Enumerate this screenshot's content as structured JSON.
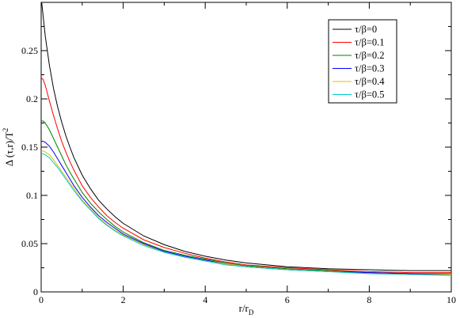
{
  "chart_data": {
    "type": "line",
    "title": "",
    "xlabel": {
      "main": "r/r",
      "sub": "D"
    },
    "ylabel": {
      "main": "Δ (τ,r)/T",
      "sup": "2"
    },
    "xlim": [
      0,
      10
    ],
    "ylim": [
      0,
      0.3
    ],
    "xticks": [
      0,
      2,
      4,
      6,
      8,
      10
    ],
    "xtick_labels": [
      "0",
      "2",
      "4",
      "6",
      "8",
      "10"
    ],
    "yticks": [
      0,
      0.05,
      0.1,
      0.15,
      0.2,
      0.25
    ],
    "ytick_labels": [
      "0",
      "0.05",
      "0.1",
      "0.15",
      "0.2",
      "0.25"
    ],
    "grid": false,
    "legend_position": "top-right",
    "x": [
      0,
      0.05,
      0.1,
      0.2,
      0.3,
      0.4,
      0.5,
      0.6,
      0.7,
      0.8,
      1.0,
      1.2,
      1.4,
      1.6,
      1.8,
      2.0,
      2.5,
      3.0,
      3.5,
      4.0,
      4.5,
      5.0,
      6.0,
      7.0,
      8.0,
      9.0,
      10.0
    ],
    "series": [
      {
        "name": "τ/β=0",
        "color": "#000000",
        "values": [
          0.305,
          0.285,
          0.265,
          0.235,
          0.211,
          0.192,
          0.176,
          0.162,
          0.15,
          0.139,
          0.121,
          0.107,
          0.095,
          0.086,
          0.078,
          0.071,
          0.058,
          0.049,
          0.042,
          0.037,
          0.033,
          0.03,
          0.026,
          0.024,
          0.023,
          0.022,
          0.022
        ]
      },
      {
        "name": "τ/β=0.1",
        "color": "#ff0000",
        "values": [
          0.222,
          0.22,
          0.214,
          0.198,
          0.183,
          0.169,
          0.156,
          0.145,
          0.135,
          0.126,
          0.11,
          0.098,
          0.088,
          0.079,
          0.072,
          0.066,
          0.054,
          0.046,
          0.04,
          0.035,
          0.031,
          0.028,
          0.025,
          0.023,
          0.021,
          0.02,
          0.02
        ]
      },
      {
        "name": "τ/β=0.2",
        "color": "#008000",
        "values": [
          0.177,
          0.177,
          0.175,
          0.168,
          0.159,
          0.15,
          0.141,
          0.132,
          0.124,
          0.117,
          0.103,
          0.092,
          0.083,
          0.075,
          0.068,
          0.062,
          0.051,
          0.043,
          0.038,
          0.034,
          0.03,
          0.027,
          0.024,
          0.022,
          0.02,
          0.019,
          0.019
        ]
      },
      {
        "name": "τ/β=0.3",
        "color": "#0000ff",
        "values": [
          0.156,
          0.156,
          0.155,
          0.151,
          0.145,
          0.138,
          0.131,
          0.124,
          0.117,
          0.11,
          0.098,
          0.088,
          0.079,
          0.072,
          0.066,
          0.06,
          0.05,
          0.042,
          0.037,
          0.033,
          0.029,
          0.026,
          0.023,
          0.021,
          0.02,
          0.019,
          0.018
        ]
      },
      {
        "name": "τ/β=0.4",
        "color": "#e6b800",
        "values": [
          0.146,
          0.146,
          0.145,
          0.142,
          0.137,
          0.131,
          0.125,
          0.119,
          0.113,
          0.107,
          0.095,
          0.086,
          0.077,
          0.07,
          0.064,
          0.059,
          0.049,
          0.041,
          0.036,
          0.032,
          0.029,
          0.026,
          0.023,
          0.021,
          0.019,
          0.018,
          0.018
        ]
      },
      {
        "name": "τ/β=0.5",
        "color": "#00cccc",
        "values": [
          0.143,
          0.143,
          0.142,
          0.139,
          0.134,
          0.129,
          0.123,
          0.117,
          0.111,
          0.105,
          0.094,
          0.085,
          0.076,
          0.069,
          0.063,
          0.058,
          0.048,
          0.041,
          0.036,
          0.032,
          0.028,
          0.026,
          0.023,
          0.021,
          0.019,
          0.018,
          0.017
        ]
      }
    ]
  }
}
